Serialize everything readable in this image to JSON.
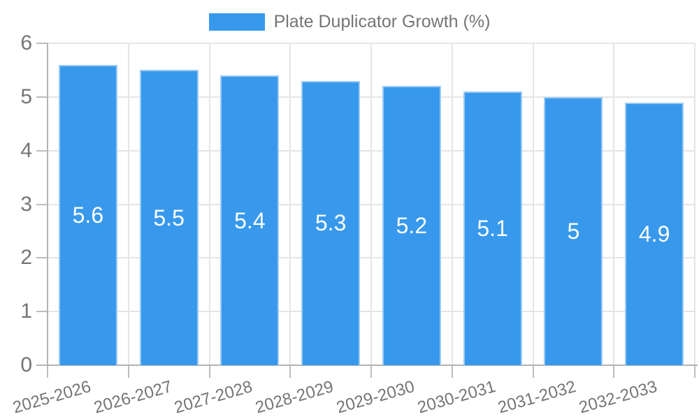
{
  "chart_data": {
    "type": "bar",
    "title": "",
    "legend": "Plate Duplicator Growth (%)",
    "legend_position": "top-center",
    "categories": [
      "2025-2026",
      "2026-2027",
      "2027-2028",
      "2028-2029",
      "2029-2030",
      "2030-2031",
      "2031-2032",
      "2032-2033"
    ],
    "values": [
      5.6,
      5.5,
      5.4,
      5.3,
      5.2,
      5.1,
      5,
      4.9
    ],
    "value_labels": [
      "5.6",
      "5.5",
      "5.4",
      "5.3",
      "5.2",
      "5.1",
      "5",
      "4.9"
    ],
    "xlabel": "",
    "ylabel": "",
    "ylim": [
      0,
      6
    ],
    "yticks": [
      0,
      1,
      2,
      3,
      4,
      5,
      6
    ],
    "ytick_labels": [
      "0",
      "1",
      "2",
      "3",
      "4",
      "5",
      "6"
    ],
    "grid": true,
    "value_label_position": "center-of-bar",
    "x_label_rotation_deg": -16,
    "colors": {
      "bar": "#3899EC",
      "bar_border": "#9CCBF3",
      "value_text": "#FFFFFF",
      "label_text": "#757575",
      "grid": "#E5E5E5",
      "axis": "#B3B3B3",
      "tick": "#BDBDBD",
      "background": "#FFFFFF"
    }
  }
}
